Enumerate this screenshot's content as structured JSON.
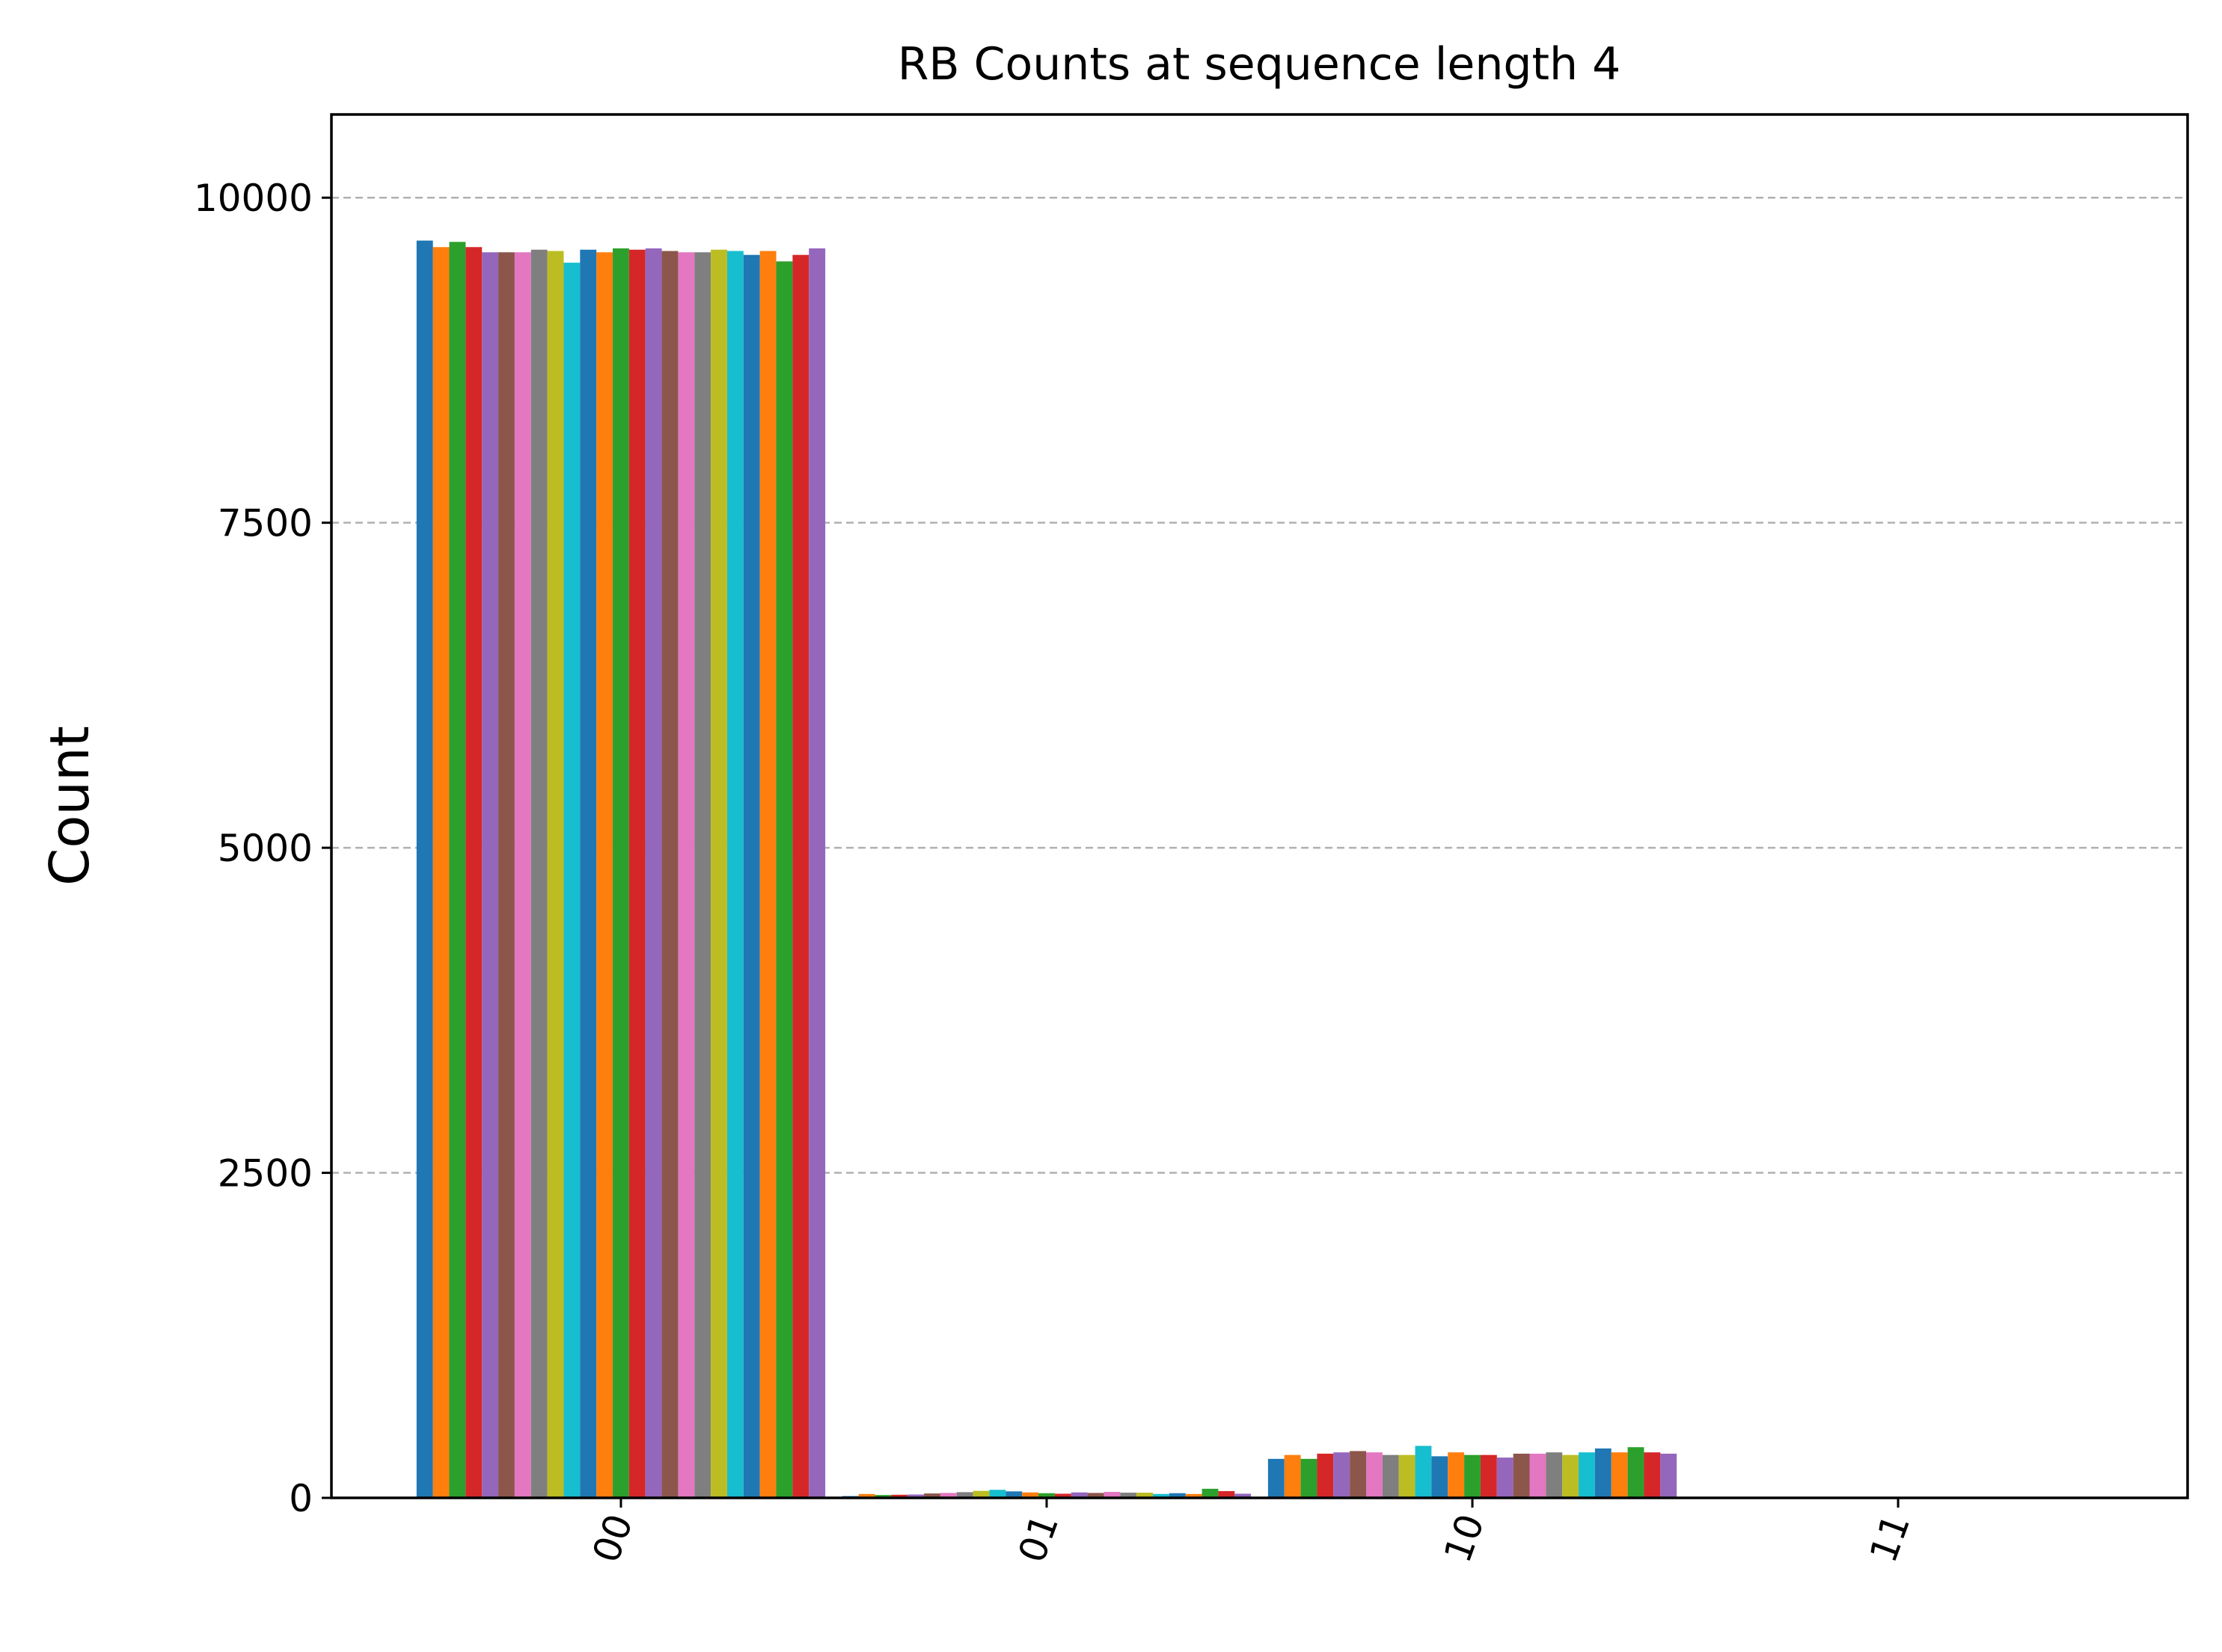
{
  "chart_data": {
    "type": "bar",
    "title": "RB Counts at sequence length 4",
    "xlabel": "",
    "ylabel": "Count",
    "categories": [
      "00",
      "01",
      "10",
      "11"
    ],
    "ylim": [
      0,
      10640
    ],
    "yticks": [
      0,
      2500,
      5000,
      7500,
      10000
    ],
    "grid": "y-dashed",
    "legend": "none",
    "colors": [
      "#1f77b4",
      "#ff7f0e",
      "#2ca02c",
      "#d62728",
      "#9467bd",
      "#8c564b",
      "#e377c2",
      "#7f7f7f",
      "#bcbd22",
      "#17becf"
    ],
    "series": [
      {
        "values": [
          9670,
          14,
          300,
          0
        ]
      },
      {
        "values": [
          9620,
          30,
          330,
          0
        ]
      },
      {
        "values": [
          9660,
          22,
          300,
          0
        ]
      },
      {
        "values": [
          9620,
          24,
          340,
          0
        ]
      },
      {
        "values": [
          9580,
          26,
          350,
          0
        ]
      },
      {
        "values": [
          9580,
          34,
          360,
          0
        ]
      },
      {
        "values": [
          9580,
          38,
          350,
          0
        ]
      },
      {
        "values": [
          9600,
          44,
          330,
          0
        ]
      },
      {
        "values": [
          9590,
          54,
          330,
          0
        ]
      },
      {
        "values": [
          9500,
          62,
          400,
          0
        ]
      },
      {
        "values": [
          9600,
          50,
          320,
          0
        ]
      },
      {
        "values": [
          9580,
          42,
          350,
          0
        ]
      },
      {
        "values": [
          9610,
          36,
          330,
          0
        ]
      },
      {
        "values": [
          9600,
          32,
          330,
          0
        ]
      },
      {
        "values": [
          9610,
          42,
          310,
          0
        ]
      },
      {
        "values": [
          9590,
          38,
          340,
          0
        ]
      },
      {
        "values": [
          9580,
          46,
          340,
          0
        ]
      },
      {
        "values": [
          9580,
          40,
          350,
          0
        ]
      },
      {
        "values": [
          9600,
          40,
          330,
          0
        ]
      },
      {
        "values": [
          9590,
          30,
          350,
          0
        ]
      },
      {
        "values": [
          9560,
          36,
          380,
          0
        ]
      },
      {
        "values": [
          9590,
          30,
          350,
          0
        ]
      },
      {
        "values": [
          9510,
          70,
          390,
          0
        ]
      },
      {
        "values": [
          9560,
          52,
          350,
          0
        ]
      },
      {
        "values": [
          9610,
          32,
          340,
          0
        ]
      }
    ]
  }
}
